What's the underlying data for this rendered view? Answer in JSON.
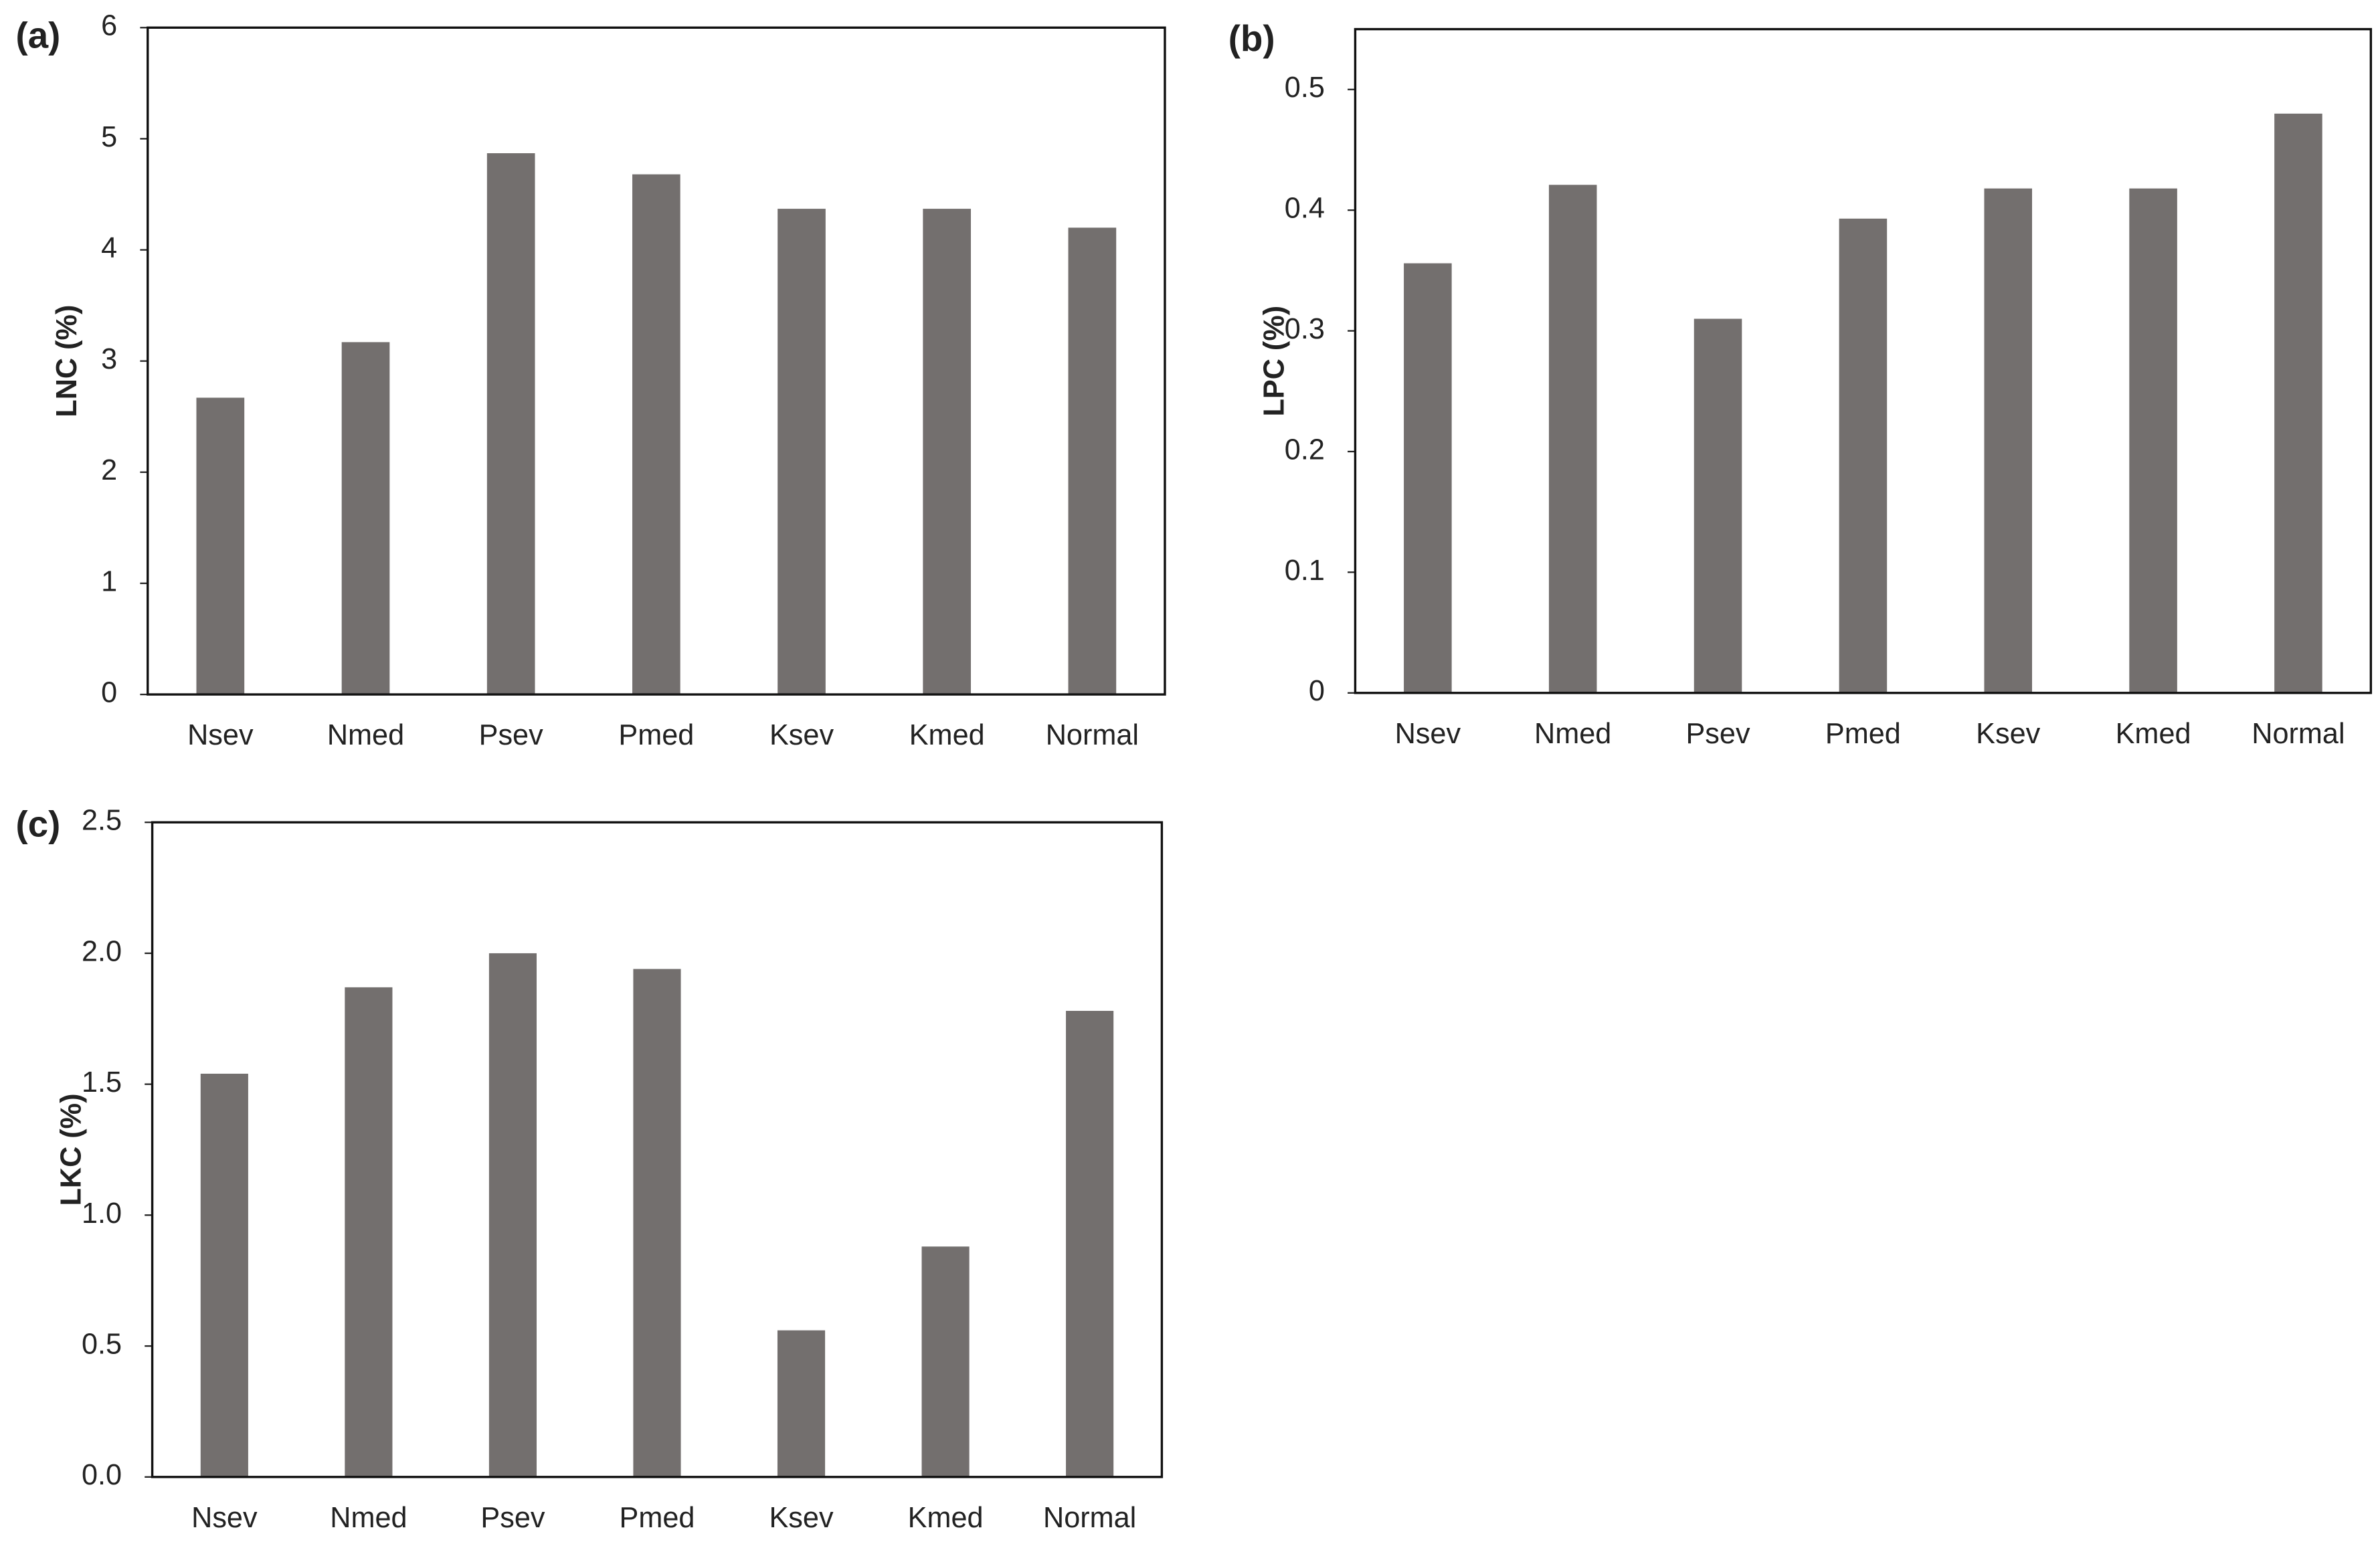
{
  "chart_data": [
    {
      "type": "bar",
      "panel_label": "(a)",
      "ylabel": "LNC (%)",
      "categories": [
        "Nsev",
        "Nmed",
        "Psev",
        "Pmed",
        "Ksev",
        "Kmed",
        "Normal"
      ],
      "values": [
        2.67,
        3.17,
        4.87,
        4.68,
        4.37,
        4.37,
        4.2
      ],
      "color": "#736f6e",
      "ylim": [
        0,
        6
      ],
      "yticks": [
        0,
        1,
        2,
        3,
        4,
        5,
        6
      ]
    },
    {
      "type": "bar",
      "panel_label": "(b)",
      "ylabel": "LPC (%)",
      "categories": [
        "Nsev",
        "Nmed",
        "Psev",
        "Pmed",
        "Ksev",
        "Kmed",
        "Normal"
      ],
      "values": [
        0.356,
        0.421,
        0.31,
        0.393,
        0.418,
        0.418,
        0.48
      ],
      "color": "#736f6e",
      "ylim": [
        0,
        0.55
      ],
      "yticks": [
        0,
        0.1,
        0.2,
        0.3,
        0.4,
        0.5
      ]
    },
    {
      "type": "bar",
      "panel_label": "(c)",
      "ylabel": "LKC (%)",
      "categories": [
        "Nsev",
        "Nmed",
        "Psev",
        "Pmed",
        "Ksev",
        "Kmed",
        "Normal"
      ],
      "values": [
        1.54,
        1.87,
        2.0,
        1.94,
        0.56,
        0.88,
        1.78
      ],
      "color": "#736f6e",
      "ylim": [
        0,
        2.5
      ],
      "yticks": [
        {
          "value": 0,
          "label": "0.0"
        },
        0.5,
        {
          "value": 1,
          "label": "1.0"
        },
        1.5,
        {
          "value": 2,
          "label": "2.0"
        },
        2.5
      ]
    }
  ]
}
